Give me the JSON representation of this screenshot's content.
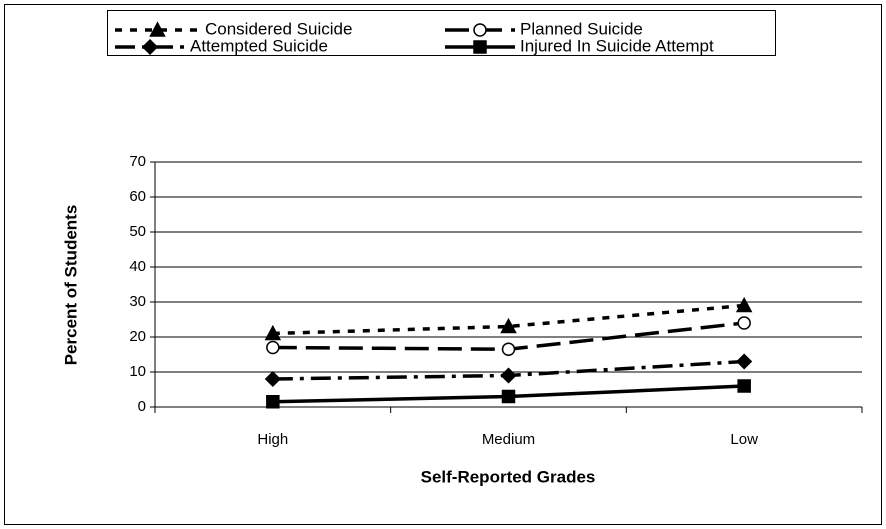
{
  "chart_data": {
    "type": "line",
    "x_label": "Self-Reported Grades",
    "y_label": "Percent of Students",
    "categories": [
      "High",
      "Medium",
      "Low"
    ],
    "series": [
      {
        "name": "Considered Suicide",
        "color": "#000000",
        "marker": "triangle",
        "dash": "7 8",
        "values": [
          21,
          23,
          29
        ]
      },
      {
        "name": "Planned Suicide",
        "color": "#000000",
        "marker": "circle",
        "dash": "24 9",
        "values": [
          17,
          16.5,
          24
        ]
      },
      {
        "name": "Attempted Suicide",
        "color": "#000000",
        "marker": "diamond",
        "dash": "20 7 4 7",
        "values": [
          8,
          9,
          13
        ]
      },
      {
        "name": "Injured In Suicide Attempt",
        "color": "#000000",
        "marker": "square",
        "dash": "none",
        "values": [
          1.5,
          3,
          6
        ]
      }
    ],
    "ylim": [
      0,
      70
    ],
    "yticks": [
      0,
      10,
      20,
      30,
      40,
      50,
      60,
      70
    ],
    "grid": true,
    "legend": "top"
  }
}
